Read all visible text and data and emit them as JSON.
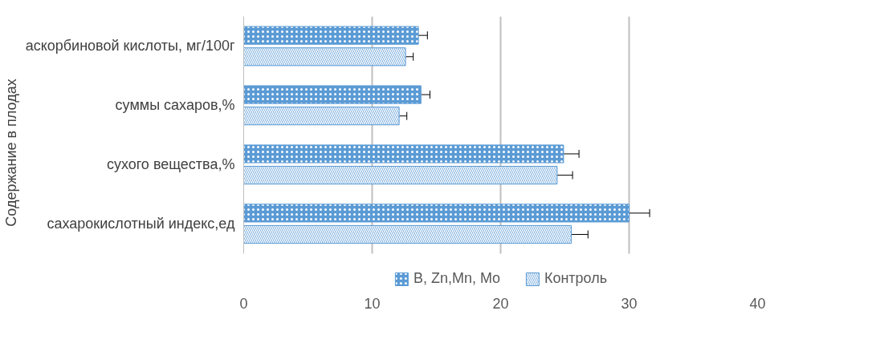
{
  "chart_data": {
    "type": "bar",
    "orientation": "horizontal",
    "ylabel": "Содержание в плодах",
    "categories": [
      "аскорбиновой кислоты, мг/100г",
      "суммы сахаров,%",
      "сухого вещества,%",
      "сахарокислотный индекс,ед"
    ],
    "series": [
      {
        "name": "B, Zn,Mn, Mo",
        "color": "#5b9bd5",
        "values": [
          13.6,
          13.8,
          24.9,
          30.0
        ],
        "errors": [
          0.7,
          0.7,
          1.2,
          1.6
        ]
      },
      {
        "name": "Контроль",
        "color": "#5b9bd5",
        "values": [
          12.6,
          12.1,
          24.4,
          25.5
        ],
        "errors": [
          0.6,
          0.6,
          1.2,
          1.3
        ]
      }
    ],
    "xlim": [
      0,
      40
    ],
    "xticks": [
      0,
      10,
      20,
      30,
      40
    ],
    "grid": "x",
    "legend": "bottom"
  }
}
